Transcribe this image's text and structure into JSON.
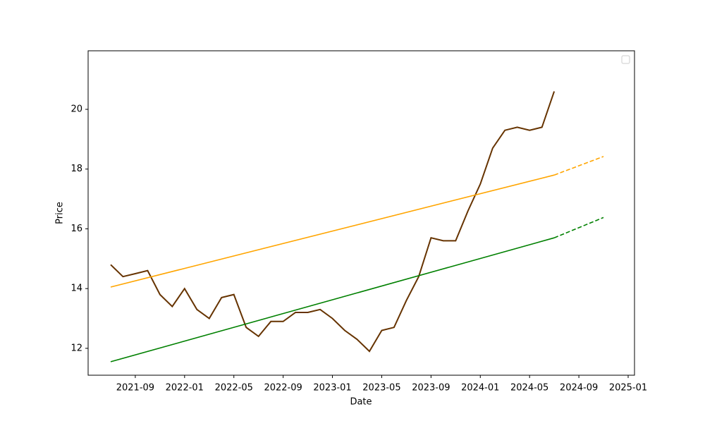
{
  "chart_data": {
    "type": "line",
    "xlabel": "Date",
    "ylabel": "Price",
    "xlim": [
      "2021-05",
      "2025-01"
    ],
    "xticks": [
      "2021-09",
      "2022-01",
      "2022-05",
      "2022-09",
      "2023-01",
      "2023-05",
      "2023-09",
      "2024-01",
      "2024-05",
      "2024-09",
      "2025-01"
    ],
    "ylim": [
      11.1,
      21.96
    ],
    "yticks": [
      12,
      14,
      16,
      18,
      20
    ],
    "legend": "upper right",
    "series": [
      {
        "color": "#663300",
        "style": "solid",
        "x": [
          "2021-07",
          "2021-08",
          "2021-09",
          "2021-10",
          "2021-11",
          "2021-12",
          "2022-01",
          "2022-02",
          "2022-03",
          "2022-04",
          "2022-05",
          "2022-06",
          "2022-07",
          "2022-08",
          "2022-09",
          "2022-10",
          "2022-11",
          "2022-12",
          "2023-01",
          "2023-02",
          "2023-03",
          "2023-04",
          "2023-05",
          "2023-06",
          "2023-07",
          "2023-08",
          "2023-09",
          "2023-10",
          "2023-11",
          "2023-12",
          "2024-01",
          "2024-02",
          "2024-03",
          "2024-04",
          "2024-05",
          "2024-06",
          "2024-07"
        ],
        "values": [
          14.8,
          14.4,
          14.5,
          14.6,
          13.8,
          13.4,
          14.0,
          13.3,
          13.0,
          13.7,
          13.8,
          12.7,
          12.4,
          12.9,
          12.9,
          13.2,
          13.2,
          13.3,
          13.0,
          12.6,
          12.3,
          11.9,
          12.6,
          12.7,
          13.6,
          14.4,
          15.7,
          15.6,
          15.6,
          16.6,
          17.5,
          18.7,
          19.3,
          19.4,
          19.3,
          19.4,
          20.6
        ]
      },
      {
        "color": "orange",
        "style": "solid",
        "x": [
          "2021-07",
          "2024-07"
        ],
        "values": [
          14.05,
          17.8
        ]
      },
      {
        "color": "orange",
        "style": "dashed",
        "x": [
          "2024-07",
          "2024-11"
        ],
        "values": [
          17.8,
          18.42
        ]
      },
      {
        "color": "green",
        "style": "solid",
        "x": [
          "2021-07",
          "2024-07"
        ],
        "values": [
          11.55,
          15.7
        ]
      },
      {
        "color": "green",
        "style": "dashed",
        "x": [
          "2024-07",
          "2024-11"
        ],
        "values": [
          15.7,
          16.38
        ]
      }
    ]
  }
}
